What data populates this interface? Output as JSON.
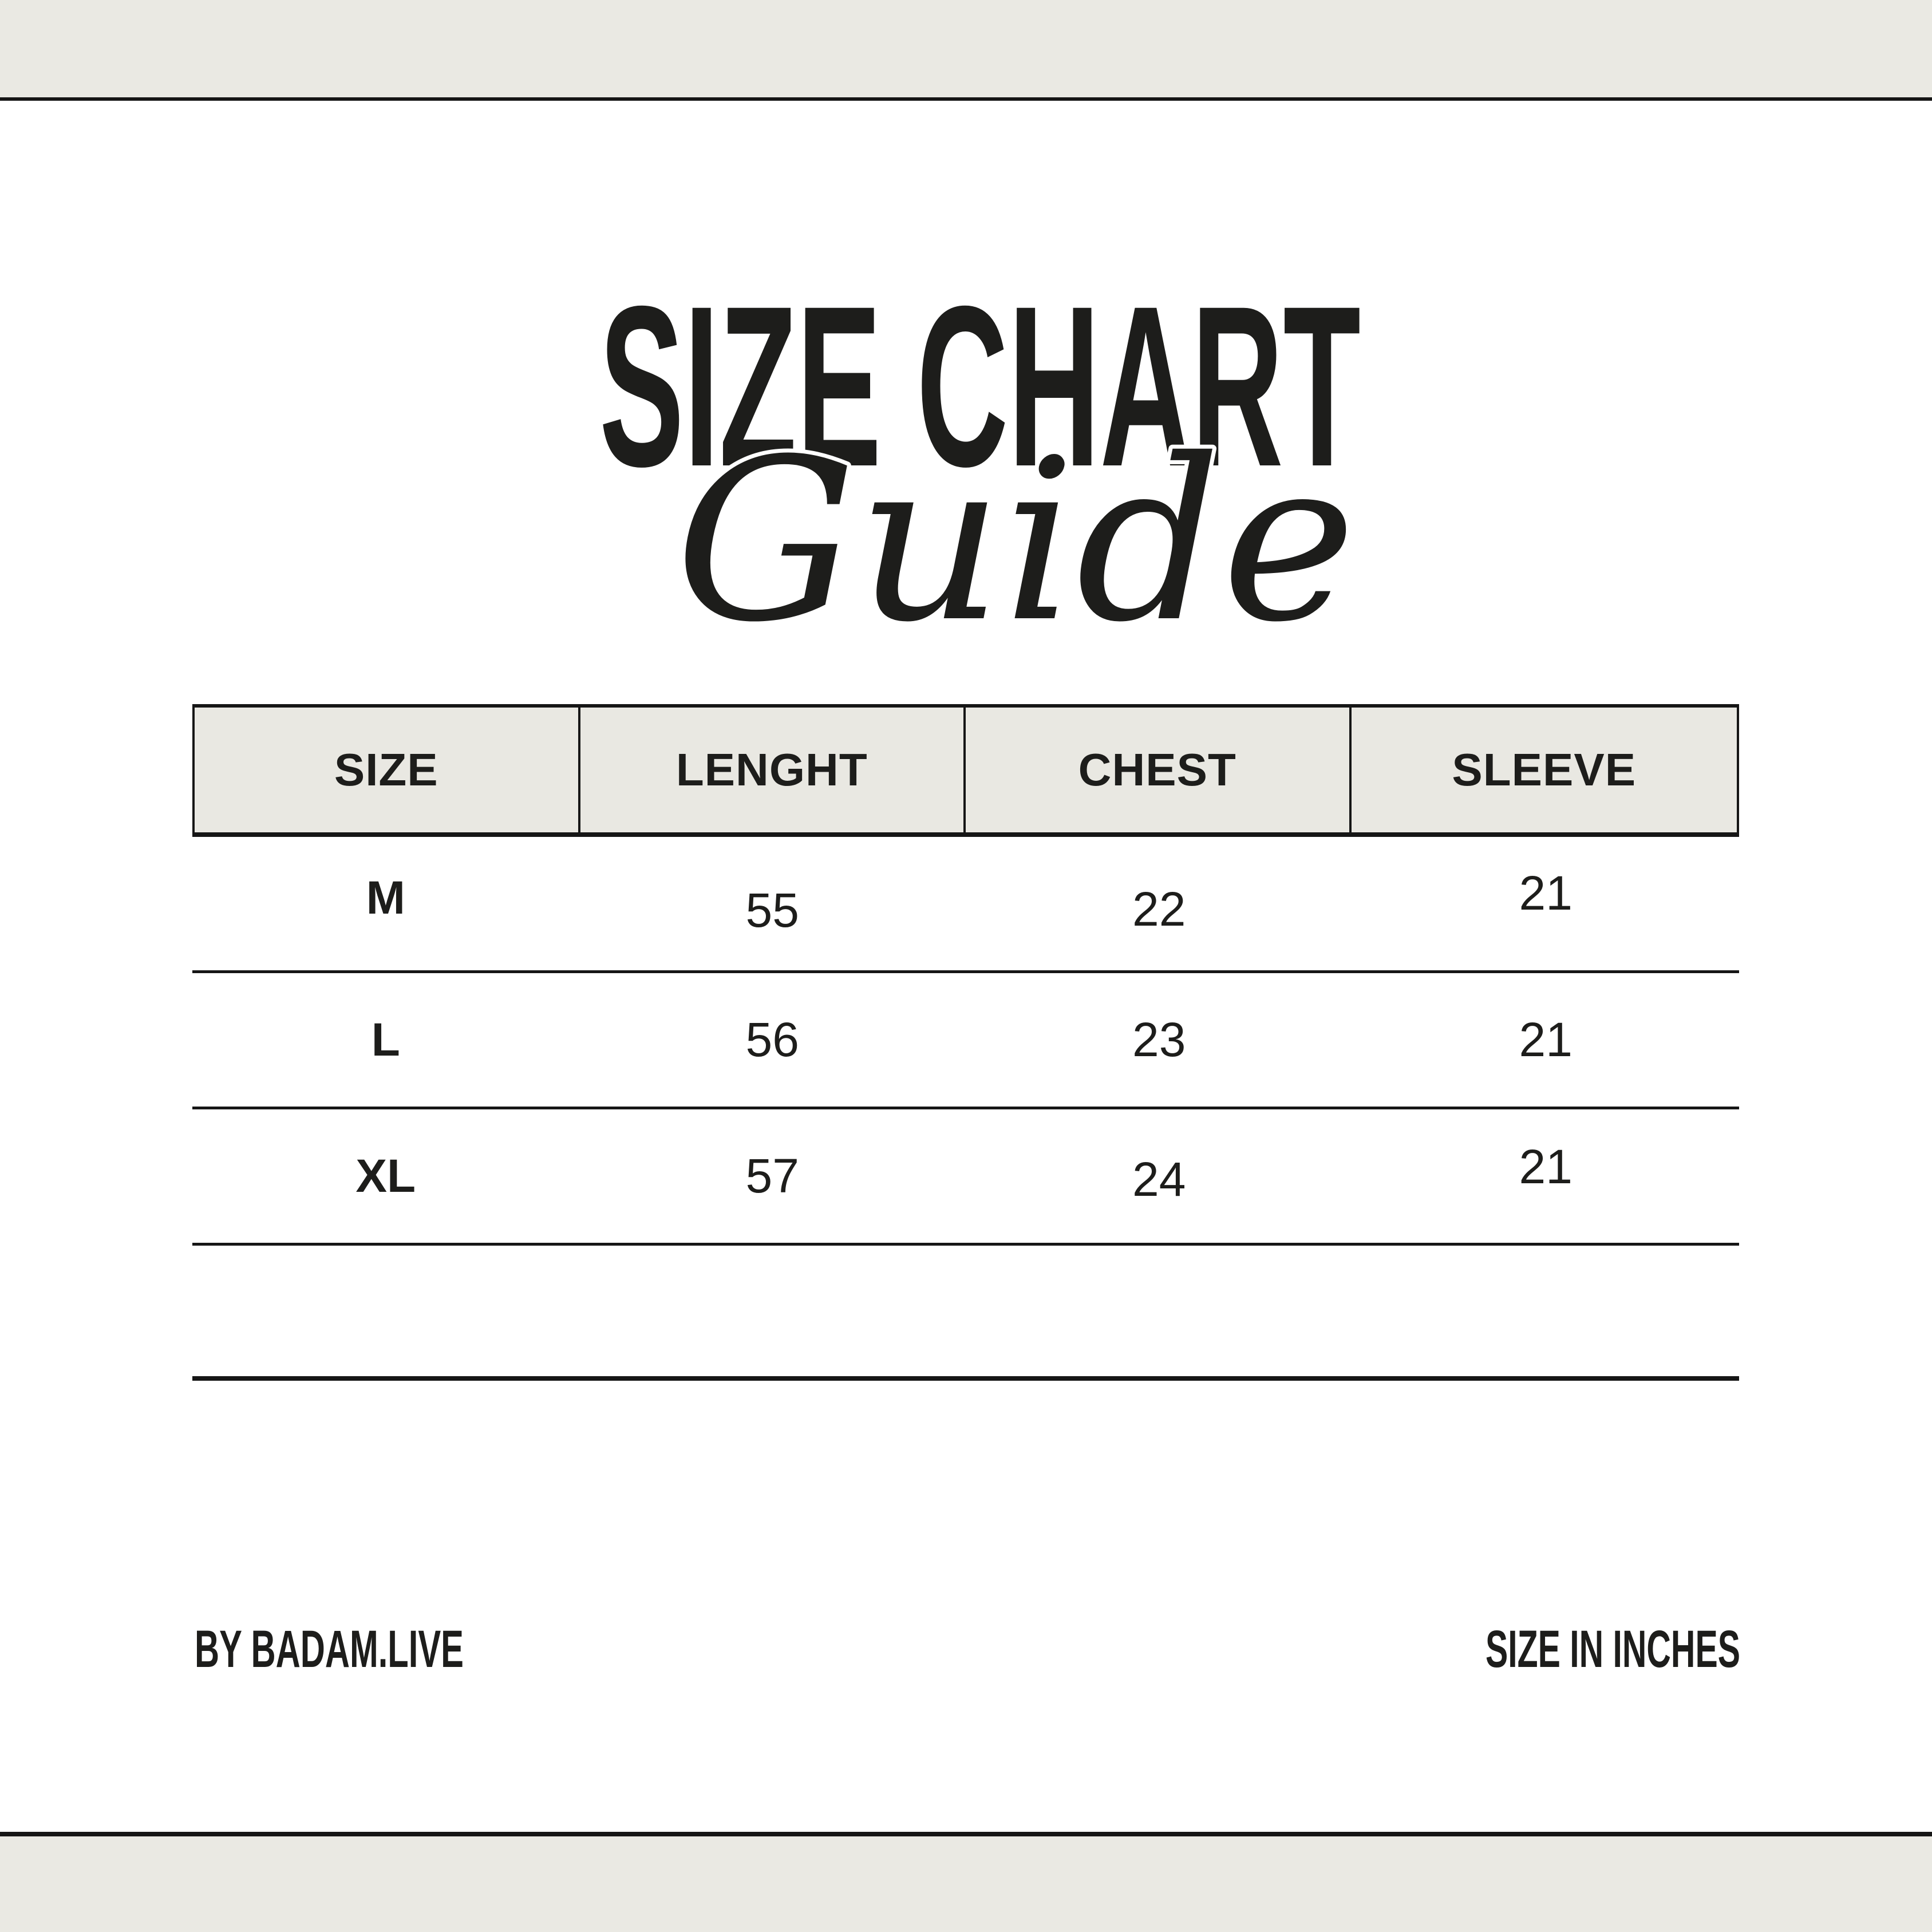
{
  "title": {
    "main": "SIZE CHART",
    "script": "Guide"
  },
  "table": {
    "headers": [
      "SIZE",
      "LENGHT",
      "CHEST",
      "SLEEVE"
    ],
    "rows": [
      [
        "M",
        "55",
        "22",
        "21"
      ],
      [
        "L",
        "56",
        "23",
        "21"
      ],
      [
        "XL",
        "57",
        "24",
        "21"
      ]
    ]
  },
  "footer": {
    "left": "BY BADAM.LIVE",
    "right": "SIZE IN INCHES"
  },
  "colors": {
    "page": "#ffffff",
    "band": "#eae9e3",
    "header_bg": "#e9e8e2",
    "ink": "#1d1d1b",
    "line": "#161616"
  },
  "chart_data": {
    "type": "table",
    "title": "SIZE CHART",
    "subtitle": "Guide",
    "columns": [
      "SIZE",
      "LENGHT",
      "CHEST",
      "SLEEVE"
    ],
    "rows": [
      [
        "M",
        55,
        22,
        21
      ],
      [
        "L",
        56,
        23,
        21
      ],
      [
        "XL",
        57,
        24,
        21
      ]
    ],
    "units_note": "SIZE IN INCHES",
    "brand_note": "BY BADAM.LIVE",
    "layout_hints": {
      "header_has_vertical_dividers": true,
      "data_rows_horizontal_rules_only": true,
      "trailing_empty_row": true
    }
  }
}
